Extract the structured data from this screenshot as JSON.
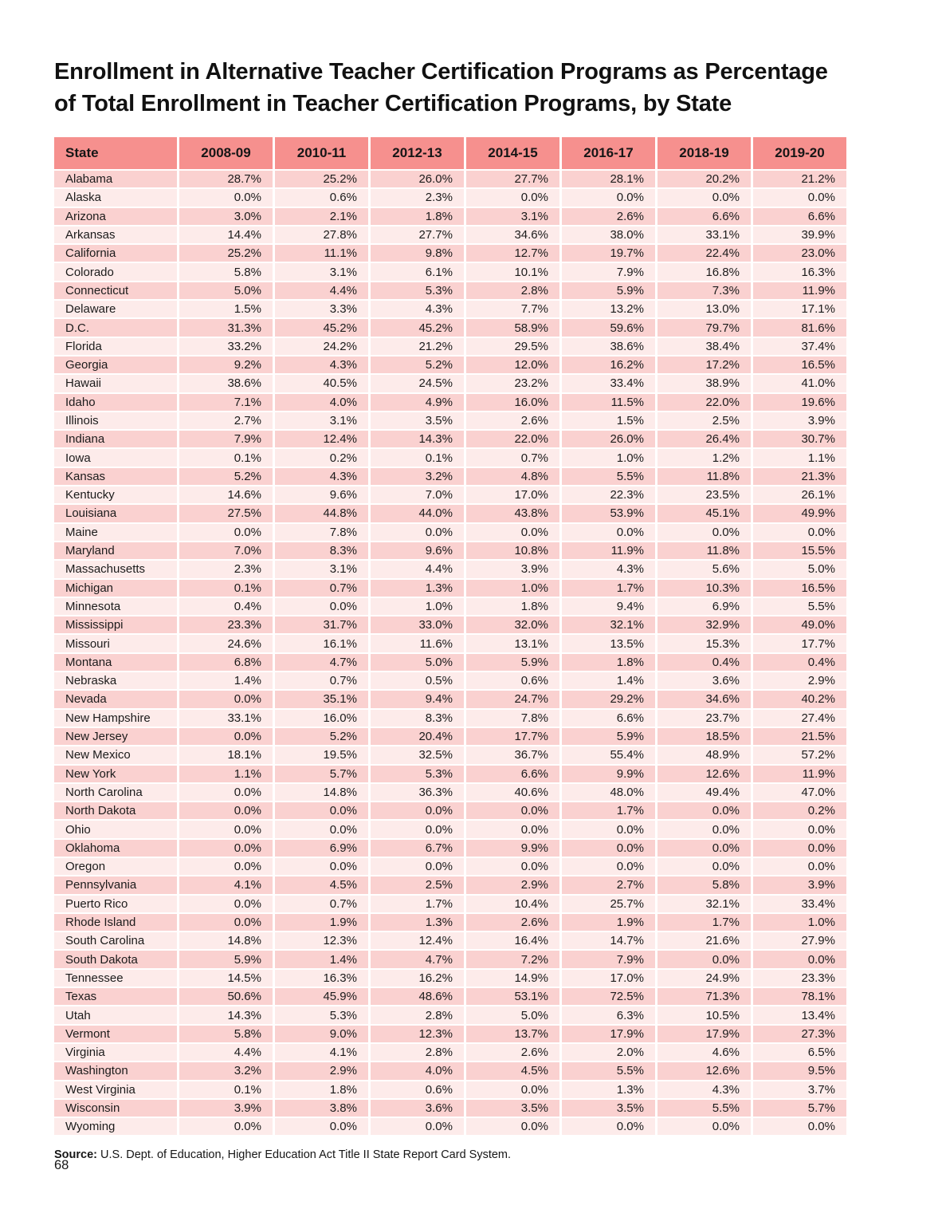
{
  "page": {
    "title_line1": "Enrollment in Alternative Teacher Certification Programs as Percentage",
    "title_line2": "of Total Enrollment in Teacher Certification Programs, by State",
    "source_label": "Source:",
    "source_text": "U.S. Dept. of Education, Higher Education Act Title II State Report Card System.",
    "page_number": "68"
  },
  "colors": {
    "header_bg": "#f6908e",
    "row_dark": "#fad1d0",
    "row_light": "#fdebea",
    "text": "#1b1b1b"
  },
  "chart_data": {
    "type": "table",
    "title": "Enrollment in Alternative Teacher Certification Programs as Percentage of Total Enrollment in Teacher Certification Programs, by State",
    "columns": [
      "State",
      "2008-09",
      "2010-11",
      "2012-13",
      "2014-15",
      "2016-17",
      "2018-19",
      "2019-20"
    ],
    "rows": [
      [
        "Alabama",
        "28.7%",
        "25.2%",
        "26.0%",
        "27.7%",
        "28.1%",
        "20.2%",
        "21.2%"
      ],
      [
        "Alaska",
        "0.0%",
        "0.6%",
        "2.3%",
        "0.0%",
        "0.0%",
        "0.0%",
        "0.0%"
      ],
      [
        "Arizona",
        "3.0%",
        "2.1%",
        "1.8%",
        "3.1%",
        "2.6%",
        "6.6%",
        "6.6%"
      ],
      [
        "Arkansas",
        "14.4%",
        "27.8%",
        "27.7%",
        "34.6%",
        "38.0%",
        "33.1%",
        "39.9%"
      ],
      [
        "California",
        "25.2%",
        "11.1%",
        "9.8%",
        "12.7%",
        "19.7%",
        "22.4%",
        "23.0%"
      ],
      [
        "Colorado",
        "5.8%",
        "3.1%",
        "6.1%",
        "10.1%",
        "7.9%",
        "16.8%",
        "16.3%"
      ],
      [
        "Connecticut",
        "5.0%",
        "4.4%",
        "5.3%",
        "2.8%",
        "5.9%",
        "7.3%",
        "11.9%"
      ],
      [
        "Delaware",
        "1.5%",
        "3.3%",
        "4.3%",
        "7.7%",
        "13.2%",
        "13.0%",
        "17.1%"
      ],
      [
        "D.C.",
        "31.3%",
        "45.2%",
        "45.2%",
        "58.9%",
        "59.6%",
        "79.7%",
        "81.6%"
      ],
      [
        "Florida",
        "33.2%",
        "24.2%",
        "21.2%",
        "29.5%",
        "38.6%",
        "38.4%",
        "37.4%"
      ],
      [
        "Georgia",
        "9.2%",
        "4.3%",
        "5.2%",
        "12.0%",
        "16.2%",
        "17.2%",
        "16.5%"
      ],
      [
        "Hawaii",
        "38.6%",
        "40.5%",
        "24.5%",
        "23.2%",
        "33.4%",
        "38.9%",
        "41.0%"
      ],
      [
        "Idaho",
        "7.1%",
        "4.0%",
        "4.9%",
        "16.0%",
        "11.5%",
        "22.0%",
        "19.6%"
      ],
      [
        "Illinois",
        "2.7%",
        "3.1%",
        "3.5%",
        "2.6%",
        "1.5%",
        "2.5%",
        "3.9%"
      ],
      [
        "Indiana",
        "7.9%",
        "12.4%",
        "14.3%",
        "22.0%",
        "26.0%",
        "26.4%",
        "30.7%"
      ],
      [
        "Iowa",
        "0.1%",
        "0.2%",
        "0.1%",
        "0.7%",
        "1.0%",
        "1.2%",
        "1.1%"
      ],
      [
        "Kansas",
        "5.2%",
        "4.3%",
        "3.2%",
        "4.8%",
        "5.5%",
        "11.8%",
        "21.3%"
      ],
      [
        "Kentucky",
        "14.6%",
        "9.6%",
        "7.0%",
        "17.0%",
        "22.3%",
        "23.5%",
        "26.1%"
      ],
      [
        "Louisiana",
        "27.5%",
        "44.8%",
        "44.0%",
        "43.8%",
        "53.9%",
        "45.1%",
        "49.9%"
      ],
      [
        "Maine",
        "0.0%",
        "7.8%",
        "0.0%",
        "0.0%",
        "0.0%",
        "0.0%",
        "0.0%"
      ],
      [
        "Maryland",
        "7.0%",
        "8.3%",
        "9.6%",
        "10.8%",
        "11.9%",
        "11.8%",
        "15.5%"
      ],
      [
        "Massachusetts",
        "2.3%",
        "3.1%",
        "4.4%",
        "3.9%",
        "4.3%",
        "5.6%",
        "5.0%"
      ],
      [
        "Michigan",
        "0.1%",
        "0.7%",
        "1.3%",
        "1.0%",
        "1.7%",
        "10.3%",
        "16.5%"
      ],
      [
        "Minnesota",
        "0.4%",
        "0.0%",
        "1.0%",
        "1.8%",
        "9.4%",
        "6.9%",
        "5.5%"
      ],
      [
        "Mississippi",
        "23.3%",
        "31.7%",
        "33.0%",
        "32.0%",
        "32.1%",
        "32.9%",
        "49.0%"
      ],
      [
        "Missouri",
        "24.6%",
        "16.1%",
        "11.6%",
        "13.1%",
        "13.5%",
        "15.3%",
        "17.7%"
      ],
      [
        "Montana",
        "6.8%",
        "4.7%",
        "5.0%",
        "5.9%",
        "1.8%",
        "0.4%",
        "0.4%"
      ],
      [
        "Nebraska",
        "1.4%",
        "0.7%",
        "0.5%",
        "0.6%",
        "1.4%",
        "3.6%",
        "2.9%"
      ],
      [
        "Nevada",
        "0.0%",
        "35.1%",
        "9.4%",
        "24.7%",
        "29.2%",
        "34.6%",
        "40.2%"
      ],
      [
        "New Hampshire",
        "33.1%",
        "16.0%",
        "8.3%",
        "7.8%",
        "6.6%",
        "23.7%",
        "27.4%"
      ],
      [
        "New Jersey",
        "0.0%",
        "5.2%",
        "20.4%",
        "17.7%",
        "5.9%",
        "18.5%",
        "21.5%"
      ],
      [
        "New Mexico",
        "18.1%",
        "19.5%",
        "32.5%",
        "36.7%",
        "55.4%",
        "48.9%",
        "57.2%"
      ],
      [
        "New York",
        "1.1%",
        "5.7%",
        "5.3%",
        "6.6%",
        "9.9%",
        "12.6%",
        "11.9%"
      ],
      [
        "North Carolina",
        "0.0%",
        "14.8%",
        "36.3%",
        "40.6%",
        "48.0%",
        "49.4%",
        "47.0%"
      ],
      [
        "North Dakota",
        "0.0%",
        "0.0%",
        "0.0%",
        "0.0%",
        "1.7%",
        "0.0%",
        "0.2%"
      ],
      [
        "Ohio",
        "0.0%",
        "0.0%",
        "0.0%",
        "0.0%",
        "0.0%",
        "0.0%",
        "0.0%"
      ],
      [
        "Oklahoma",
        "0.0%",
        "6.9%",
        "6.7%",
        "9.9%",
        "0.0%",
        "0.0%",
        "0.0%"
      ],
      [
        "Oregon",
        "0.0%",
        "0.0%",
        "0.0%",
        "0.0%",
        "0.0%",
        "0.0%",
        "0.0%"
      ],
      [
        "Pennsylvania",
        "4.1%",
        "4.5%",
        "2.5%",
        "2.9%",
        "2.7%",
        "5.8%",
        "3.9%"
      ],
      [
        "Puerto Rico",
        "0.0%",
        "0.7%",
        "1.7%",
        "10.4%",
        "25.7%",
        "32.1%",
        "33.4%"
      ],
      [
        "Rhode Island",
        "0.0%",
        "1.9%",
        "1.3%",
        "2.6%",
        "1.9%",
        "1.7%",
        "1.0%"
      ],
      [
        "South Carolina",
        "14.8%",
        "12.3%",
        "12.4%",
        "16.4%",
        "14.7%",
        "21.6%",
        "27.9%"
      ],
      [
        "South Dakota",
        "5.9%",
        "1.4%",
        "4.7%",
        "7.2%",
        "7.9%",
        "0.0%",
        "0.0%"
      ],
      [
        "Tennessee",
        "14.5%",
        "16.3%",
        "16.2%",
        "14.9%",
        "17.0%",
        "24.9%",
        "23.3%"
      ],
      [
        "Texas",
        "50.6%",
        "45.9%",
        "48.6%",
        "53.1%",
        "72.5%",
        "71.3%",
        "78.1%"
      ],
      [
        "Utah",
        "14.3%",
        "5.3%",
        "2.8%",
        "5.0%",
        "6.3%",
        "10.5%",
        "13.4%"
      ],
      [
        "Vermont",
        "5.8%",
        "9.0%",
        "12.3%",
        "13.7%",
        "17.9%",
        "17.9%",
        "27.3%"
      ],
      [
        "Virginia",
        "4.4%",
        "4.1%",
        "2.8%",
        "2.6%",
        "2.0%",
        "4.6%",
        "6.5%"
      ],
      [
        "Washington",
        "3.2%",
        "2.9%",
        "4.0%",
        "4.5%",
        "5.5%",
        "12.6%",
        "9.5%"
      ],
      [
        "West Virginia",
        "0.1%",
        "1.8%",
        "0.6%",
        "0.0%",
        "1.3%",
        "4.3%",
        "3.7%"
      ],
      [
        "Wisconsin",
        "3.9%",
        "3.8%",
        "3.6%",
        "3.5%",
        "3.5%",
        "5.5%",
        "5.7%"
      ],
      [
        "Wyoming",
        "0.0%",
        "0.0%",
        "0.0%",
        "0.0%",
        "0.0%",
        "0.0%",
        "0.0%"
      ]
    ]
  }
}
